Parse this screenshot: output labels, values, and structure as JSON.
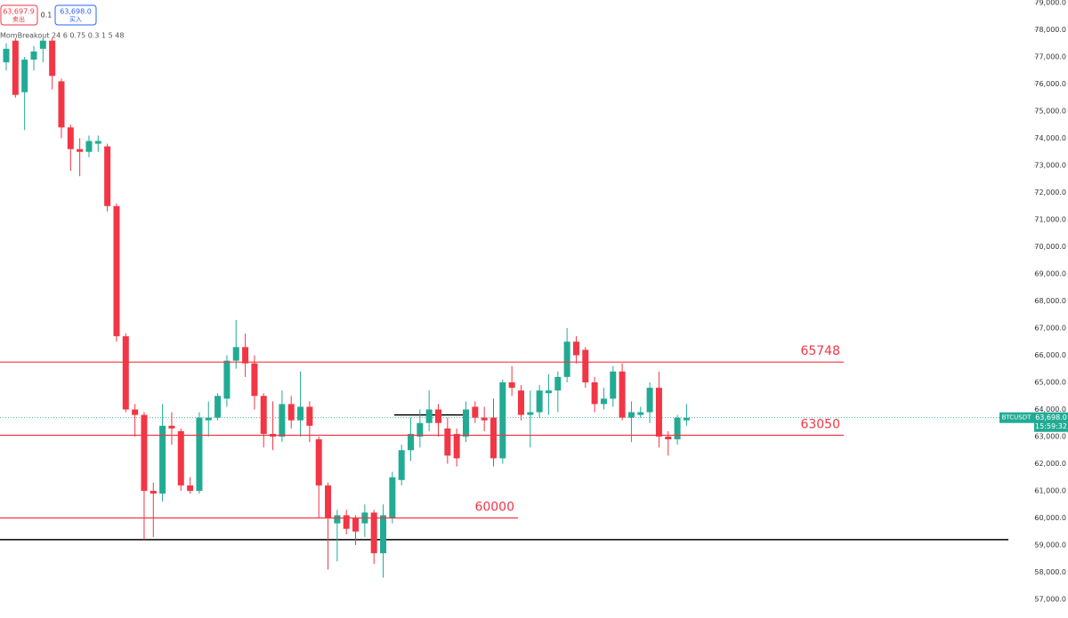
{
  "chart_data": {
    "type": "candlestick",
    "toolbar": {
      "sell_price": "63,697.9",
      "sell_label": "卖出",
      "quantity": "0.1",
      "buy_price": "63,698.0",
      "buy_label": "买入",
      "indicator": "MomBreakout 24 6 0.75 0.3 1 5 48"
    },
    "up_color": "#22ab94",
    "down_color": "#f23645",
    "open": [
      76800,
      77600,
      75700,
      76900,
      77300,
      77600,
      76100,
      74400,
      73600,
      73500,
      73800,
      73700,
      71500,
      66700,
      64000,
      63800,
      61000,
      60900,
      63400,
      63200,
      61200,
      61000,
      63600,
      63700,
      64400,
      65800,
      66300,
      65700,
      64500,
      63100,
      63000,
      64200,
      63600,
      64100,
      62900,
      61200,
      59800,
      60100,
      60000,
      59800,
      60200,
      58700,
      60000,
      61400,
      62500,
      63000,
      63500,
      64000,
      63300,
      63100,
      63000,
      64100,
      63700,
      63700,
      62200,
      65000,
      64700,
      63800,
      63900,
      64600,
      64700,
      65200,
      66500,
      66200,
      65000,
      64200,
      64400,
      65400,
      63700,
      63800,
      63900,
      64800,
      63000,
      62900,
      63600
    ],
    "high": [
      77500,
      77700,
      77000,
      77400,
      77700,
      77700,
      76200,
      74500,
      74000,
      74100,
      74100,
      73800,
      71600,
      66800,
      64200,
      63900,
      61300,
      64200,
      63900,
      63300,
      61500,
      63900,
      64300,
      64600,
      66000,
      67300,
      66800,
      66000,
      64600,
      64300,
      64700,
      64500,
      65400,
      64300,
      63000,
      61300,
      60300,
      60300,
      60100,
      60500,
      60300,
      60500,
      61700,
      62700,
      63700,
      64000,
      64700,
      64200,
      63700,
      63300,
      64300,
      64300,
      64100,
      64400,
      65100,
      65600,
      64900,
      64700,
      64900,
      65300,
      65400,
      67000,
      66700,
      66300,
      65200,
      64800,
      65600,
      65700,
      64300,
      64100,
      65000,
      65400,
      63200,
      63800,
      64200
    ],
    "low": [
      76500,
      75500,
      74300,
      76500,
      76800,
      75800,
      74000,
      72800,
      72600,
      73300,
      73500,
      71300,
      66500,
      63900,
      63000,
      59200,
      59300,
      60600,
      62700,
      61000,
      60900,
      60900,
      63000,
      63600,
      64100,
      65500,
      65200,
      64000,
      62600,
      62500,
      62800,
      63300,
      63000,
      62800,
      60000,
      58100,
      58400,
      59400,
      59000,
      59300,
      58300,
      57800,
      59800,
      61200,
      62100,
      62600,
      63200,
      63000,
      62000,
      61900,
      62800,
      63500,
      63200,
      61900,
      62000,
      64500,
      63600,
      62600,
      63700,
      63800,
      63900,
      65000,
      65700,
      64800,
      63900,
      64000,
      64100,
      63600,
      62800,
      63700,
      63500,
      62600,
      62300,
      62700,
      63400
    ],
    "close": [
      77300,
      75600,
      76900,
      77200,
      77600,
      76300,
      74400,
      73600,
      73500,
      73900,
      73900,
      71500,
      66700,
      64000,
      63800,
      61000,
      60900,
      63400,
      63300,
      61200,
      61000,
      63700,
      63700,
      64500,
      65800,
      66300,
      65700,
      64500,
      63100,
      63000,
      64200,
      63600,
      64100,
      63400,
      61200,
      60000,
      60100,
      59600,
      59500,
      60200,
      58700,
      60100,
      61500,
      62500,
      63100,
      63500,
      64000,
      63500,
      62300,
      62200,
      64000,
      63700,
      63600,
      62200,
      65000,
      64800,
      63800,
      63900,
      64700,
      64700,
      65200,
      66500,
      66000,
      65000,
      64200,
      64400,
      65400,
      63700,
      63900,
      63900,
      64800,
      63000,
      62900,
      63700,
      63698
    ],
    "levels": [
      65748,
      63050,
      60000
    ],
    "level_color": "#f23645",
    "black_lines": [
      59200,
      63800
    ],
    "last_price": {
      "value": 63698,
      "label": "63,698.0"
    },
    "symbol": "BTCUSDT",
    "countdown": "15:59:32",
    "ylim": [
      57000,
      79000
    ],
    "yticks": [
      {
        "value": 57000,
        "label": "57,000.0"
      },
      {
        "value": 58000,
        "label": "58,000.0"
      },
      {
        "value": 59000,
        "label": "59,000.0"
      },
      {
        "value": 60000,
        "label": "60,000.0"
      },
      {
        "value": 61000,
        "label": "61,000.0"
      },
      {
        "value": 62000,
        "label": "62,000.0"
      },
      {
        "value": 63000,
        "label": "63,000.0"
      },
      {
        "value": 64000,
        "label": "64,000.0"
      },
      {
        "value": 65000,
        "label": "65,000.0"
      },
      {
        "value": 66000,
        "label": "66,000.0"
      },
      {
        "value": 67000,
        "label": "67,000.0"
      },
      {
        "value": 68000,
        "label": "68,000.0"
      },
      {
        "value": 69000,
        "label": "69,000.0"
      },
      {
        "value": 70000,
        "label": "70,000.0"
      },
      {
        "value": 71000,
        "label": "71,000.0"
      },
      {
        "value": 72000,
        "label": "72,000.0"
      },
      {
        "value": 73000,
        "label": "73,000.0"
      },
      {
        "value": 74000,
        "label": "74,000.0"
      },
      {
        "value": 75000,
        "label": "75,000.0"
      },
      {
        "value": 76000,
        "label": "76,000.0"
      },
      {
        "value": 77000,
        "label": "77,000.0"
      },
      {
        "value": 78000,
        "label": "78,000.0"
      },
      {
        "value": 79000,
        "label": "79,000.0"
      }
    ]
  }
}
